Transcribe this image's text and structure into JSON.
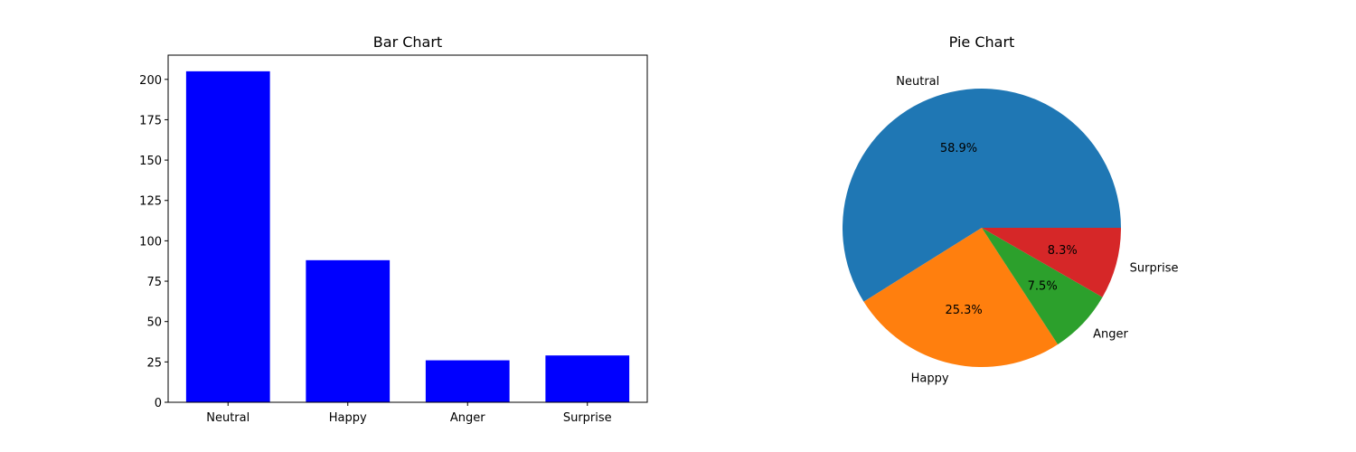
{
  "chart_data": [
    {
      "type": "bar",
      "title": "Bar Chart",
      "categories": [
        "Neutral",
        "Happy",
        "Anger",
        "Surprise"
      ],
      "values": [
        205,
        88,
        26,
        29
      ],
      "ylim": [
        0,
        215
      ],
      "yticks": [
        0,
        25,
        50,
        75,
        100,
        125,
        150,
        175,
        200
      ],
      "xlabel": "",
      "ylabel": "",
      "grid": false,
      "color": "#0000ff"
    },
    {
      "type": "pie",
      "title": "Pie Chart",
      "labels": [
        "Neutral",
        "Happy",
        "Anger",
        "Surprise"
      ],
      "values": [
        58.9,
        25.3,
        7.5,
        8.3
      ],
      "percent_labels": [
        "58.9%",
        "25.3%",
        "7.5%",
        "8.3%"
      ],
      "colors": [
        "#1f77b4",
        "#ff7f0e",
        "#2ca02c",
        "#d62728"
      ]
    }
  ]
}
